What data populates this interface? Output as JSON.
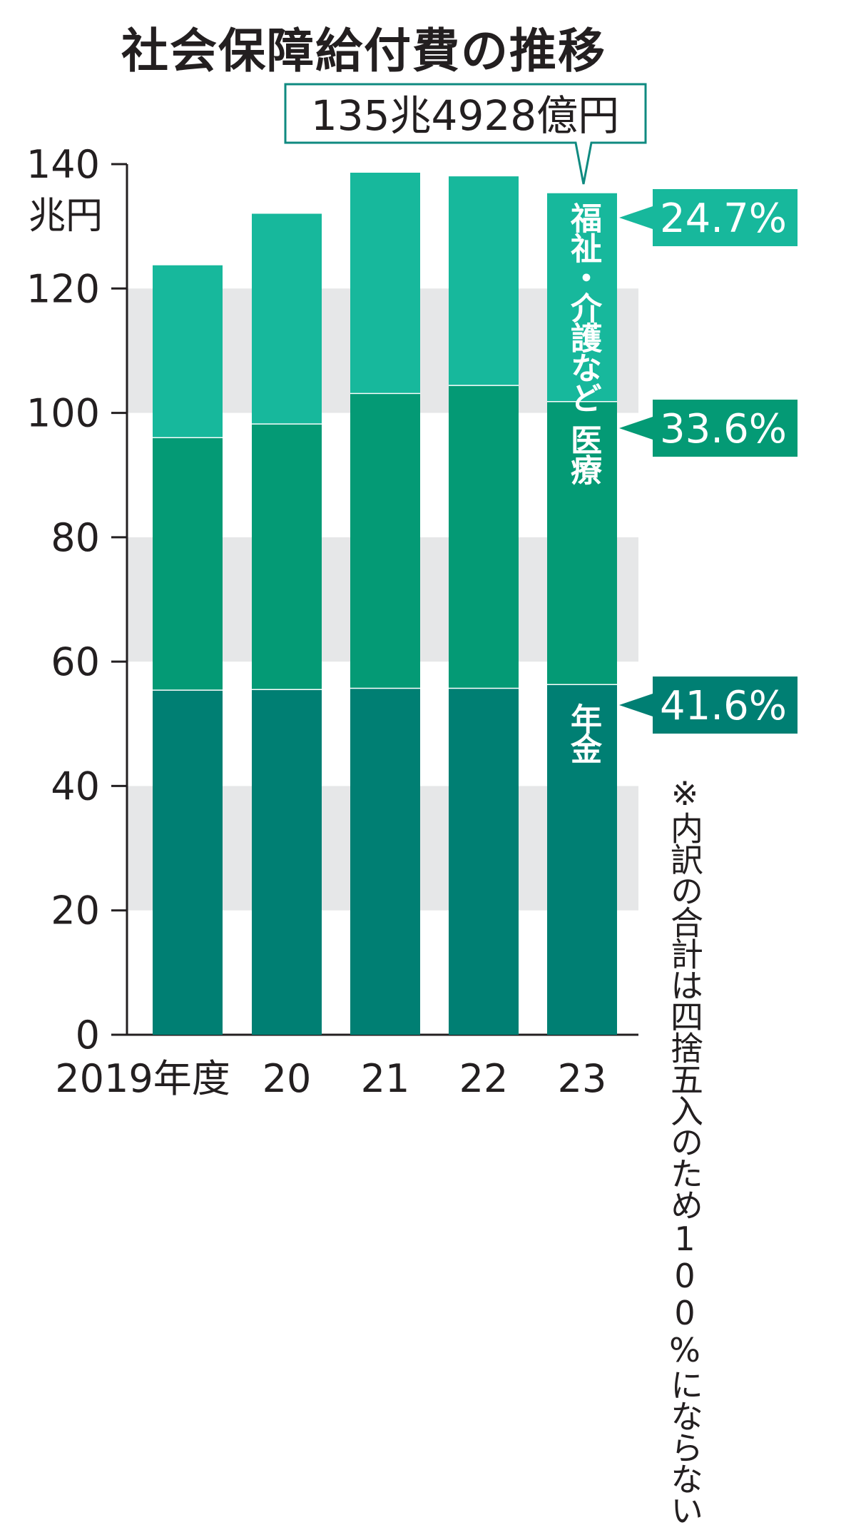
{
  "title": "社会保障給付費の推移",
  "callout": "135兆4928億円",
  "y_unit": "兆円",
  "note": "※内訳の合計は四捨五入のため100%にならない",
  "chart_data": {
    "type": "bar",
    "stacked": true,
    "title": "社会保障給付費の推移",
    "ylabel": "兆円",
    "ylim": [
      0,
      140
    ],
    "yticks": [
      0,
      20,
      40,
      60,
      80,
      100,
      120,
      140
    ],
    "categories": [
      "2019年度",
      "20",
      "21",
      "22",
      "23"
    ],
    "series": [
      {
        "name": "年金",
        "values": [
          55.5,
          55.6,
          55.8,
          55.8,
          56.4
        ],
        "color": "#007f73"
      },
      {
        "name": "医療",
        "values": [
          40.6,
          42.7,
          47.4,
          48.7,
          45.5
        ],
        "color": "#049a75"
      },
      {
        "name": "福祉・介護など",
        "values": [
          27.8,
          33.9,
          35.6,
          33.7,
          33.6
        ],
        "color": "#17b89c"
      }
    ],
    "shares_2023": [
      {
        "series": "福祉・介護など",
        "label": "24.7%"
      },
      {
        "series": "医療",
        "label": "33.6%"
      },
      {
        "series": "年金",
        "label": "41.6%"
      }
    ],
    "total_2023": "135兆4928億円",
    "grid_bands": true
  }
}
